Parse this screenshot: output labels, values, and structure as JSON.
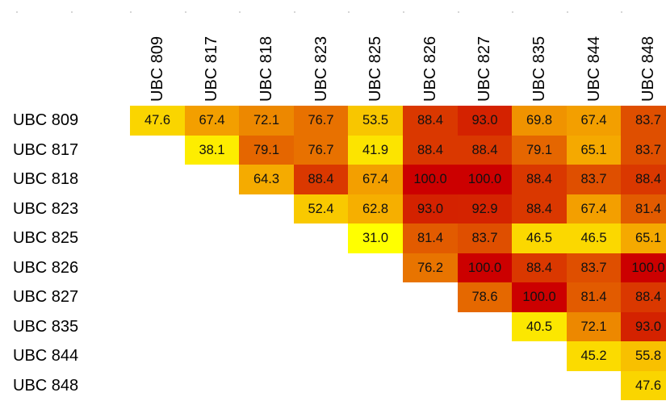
{
  "chart_data": {
    "type": "heatmap",
    "title": "",
    "xlabel": "",
    "ylabel": "",
    "columns": [
      "UBC 809",
      "UBC 817",
      "UBC 818",
      "UBC 823",
      "UBC 825",
      "UBC 826",
      "UBC 827",
      "UBC 835",
      "UBC 844",
      "UBC 848"
    ],
    "rows": [
      "UBC 809",
      "UBC 817",
      "UBC 818",
      "UBC 823",
      "UBC 825",
      "UBC 826",
      "UBC 827",
      "UBC 835",
      "UBC 844",
      "UBC 848"
    ],
    "values": [
      [
        47.6,
        67.4,
        72.1,
        76.7,
        53.5,
        88.4,
        93.0,
        69.8,
        67.4,
        83.7
      ],
      [
        null,
        38.1,
        79.1,
        76.7,
        41.9,
        88.4,
        88.4,
        79.1,
        65.1,
        83.7
      ],
      [
        null,
        null,
        64.3,
        88.4,
        67.4,
        100.0,
        100.0,
        88.4,
        83.7,
        88.4
      ],
      [
        null,
        null,
        null,
        52.4,
        62.8,
        93.0,
        92.9,
        88.4,
        67.4,
        81.4
      ],
      [
        null,
        null,
        null,
        null,
        31.0,
        81.4,
        83.7,
        46.5,
        46.5,
        65.1
      ],
      [
        null,
        null,
        null,
        null,
        null,
        76.2,
        100.0,
        88.4,
        83.7,
        100.0
      ],
      [
        null,
        null,
        null,
        null,
        null,
        null,
        78.6,
        100.0,
        81.4,
        88.4
      ],
      [
        null,
        null,
        null,
        null,
        null,
        null,
        null,
        40.5,
        72.1,
        93.0
      ],
      [
        null,
        null,
        null,
        null,
        null,
        null,
        null,
        null,
        45.2,
        55.8
      ],
      [
        null,
        null,
        null,
        null,
        null,
        null,
        null,
        null,
        null,
        47.6
      ]
    ],
    "color_scale": {
      "low": "#ffff00",
      "mid": "#f5a800",
      "high": "#cc0000"
    },
    "grid": false,
    "legend": "none"
  }
}
